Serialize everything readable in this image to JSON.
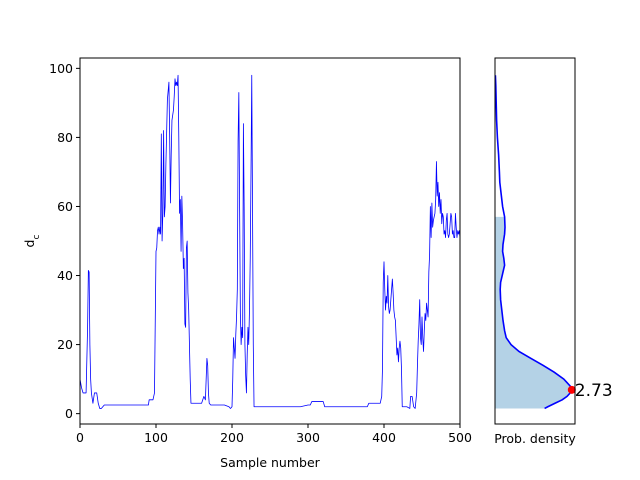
{
  "chart_data": [
    {
      "type": "line",
      "xlabel": "Sample number",
      "ylabel": "d_c",
      "xlim": [
        0,
        500
      ],
      "ylim": [
        -3,
        103
      ],
      "xticks": [
        0,
        100,
        200,
        300,
        400,
        500
      ],
      "yticks": [
        0,
        20,
        40,
        60,
        80,
        100
      ],
      "grid": false,
      "series": [
        {
          "color": "#0000ff",
          "points": [
            [
              0,
              10
            ],
            [
              2,
              7.5
            ],
            [
              4,
              6
            ],
            [
              8,
              6
            ],
            [
              10,
              25
            ],
            [
              11,
              41.5
            ],
            [
              12,
              41
            ],
            [
              13,
              20
            ],
            [
              14,
              10
            ],
            [
              15,
              6
            ],
            [
              17,
              3
            ],
            [
              19,
              6
            ],
            [
              22,
              6
            ],
            [
              24,
              3
            ],
            [
              26,
              1.5
            ],
            [
              28,
              1.5
            ],
            [
              30,
              2
            ],
            [
              32,
              2.5
            ],
            [
              60,
              2.5
            ],
            [
              90,
              2.5
            ],
            [
              91,
              4
            ],
            [
              96,
              4
            ],
            [
              98,
              6
            ],
            [
              100,
              47
            ],
            [
              101,
              48
            ],
            [
              102,
              53
            ],
            [
              103,
              54
            ],
            [
              104,
              52
            ],
            [
              105,
              54
            ],
            [
              106,
              52
            ],
            [
              107,
              81
            ],
            [
              108,
              50
            ],
            [
              109,
              58
            ],
            [
              110,
              82
            ],
            [
              111,
              57
            ],
            [
              112,
              60
            ],
            [
              113,
              72
            ],
            [
              115,
              91
            ],
            [
              117,
              96
            ],
            [
              118,
              80
            ],
            [
              119,
              61
            ],
            [
              120,
              75
            ],
            [
              121,
              85
            ],
            [
              123,
              88
            ],
            [
              124,
              92
            ],
            [
              125,
              97
            ],
            [
              126,
              95
            ],
            [
              127,
              96
            ],
            [
              128,
              95
            ],
            [
              129,
              98
            ],
            [
              130,
              80
            ],
            [
              131,
              58
            ],
            [
              132,
              62
            ],
            [
              133,
              47
            ],
            [
              134,
              63
            ],
            [
              135,
              55
            ],
            [
              136,
              42
            ],
            [
              137,
              45
            ],
            [
              138,
              26
            ],
            [
              139,
              25
            ],
            [
              140,
              48
            ],
            [
              141,
              50
            ],
            [
              142,
              35
            ],
            [
              143,
              30
            ],
            [
              144,
              20
            ],
            [
              145,
              10
            ],
            [
              146,
              3
            ],
            [
              150,
              3
            ],
            [
              155,
              3
            ],
            [
              160,
              3
            ],
            [
              163,
              5
            ],
            [
              165,
              4
            ],
            [
              167,
              16
            ],
            [
              168,
              14
            ],
            [
              169,
              6
            ],
            [
              170,
              3
            ],
            [
              172,
              2.5
            ],
            [
              174,
              2.5
            ],
            [
              180,
              2.5
            ],
            [
              190,
              2.5
            ],
            [
              196,
              2
            ],
            [
              198,
              1.5
            ],
            [
              200,
              2
            ],
            [
              201,
              10
            ],
            [
              202,
              22
            ],
            [
              203,
              19
            ],
            [
              204,
              16
            ],
            [
              205,
              23
            ],
            [
              206,
              28
            ],
            [
              207,
              36
            ],
            [
              208,
              79
            ],
            [
              209,
              93
            ],
            [
              210,
              60
            ],
            [
              211,
              29
            ],
            [
              212,
              20
            ],
            [
              213,
              25
            ],
            [
              214,
              22
            ],
            [
              215,
              84
            ],
            [
              216,
              60
            ],
            [
              217,
              20
            ],
            [
              218,
              11
            ],
            [
              219,
              6
            ],
            [
              220,
              17
            ],
            [
              221,
              25
            ],
            [
              222,
              20
            ],
            [
              223,
              30
            ],
            [
              224,
              45
            ],
            [
              225,
              70
            ],
            [
              226,
              98
            ],
            [
              227,
              60
            ],
            [
              228,
              20
            ],
            [
              229,
              2
            ],
            [
              235,
              2
            ],
            [
              260,
              2
            ],
            [
              290,
              2
            ],
            [
              300,
              2.5
            ],
            [
              303,
              2.5
            ],
            [
              305,
              3.5
            ],
            [
              320,
              3.5
            ],
            [
              322,
              2
            ],
            [
              340,
              2
            ],
            [
              370,
              2
            ],
            [
              378,
              2
            ],
            [
              380,
              3
            ],
            [
              395,
              3
            ],
            [
              397,
              5
            ],
            [
              398,
              13
            ],
            [
              399,
              38
            ],
            [
              400,
              44
            ],
            [
              401,
              36
            ],
            [
              402,
              30
            ],
            [
              403,
              34
            ],
            [
              404,
              32
            ],
            [
              405,
              40
            ],
            [
              406,
              31
            ],
            [
              407,
              29
            ],
            [
              408,
              30
            ],
            [
              409,
              33
            ],
            [
              410,
              36
            ],
            [
              411,
              39
            ],
            [
              412,
              35
            ],
            [
              413,
              30
            ],
            [
              414,
              28
            ],
            [
              415,
              27
            ],
            [
              416,
              22
            ],
            [
              417,
              17
            ],
            [
              418,
              19
            ],
            [
              419,
              15
            ],
            [
              420,
              19
            ],
            [
              421,
              21
            ],
            [
              422,
              19
            ],
            [
              423,
              13
            ],
            [
              424,
              2
            ],
            [
              430,
              2
            ],
            [
              434,
              1.5
            ],
            [
              435,
              5
            ],
            [
              437,
              5
            ],
            [
              439,
              2
            ],
            [
              441,
              1.5
            ],
            [
              443,
              6
            ],
            [
              444,
              14
            ],
            [
              445,
              21
            ],
            [
              446,
              26
            ],
            [
              447,
              33
            ],
            [
              448,
              22
            ],
            [
              449,
              20
            ],
            [
              450,
              28
            ],
            [
              451,
              22
            ],
            [
              452,
              18
            ],
            [
              453,
              24
            ],
            [
              454,
              29
            ],
            [
              455,
              27
            ],
            [
              456,
              32
            ],
            [
              457,
              30
            ],
            [
              458,
              28
            ],
            [
              459,
              41
            ],
            [
              460,
              46
            ],
            [
              461,
              60
            ],
            [
              462,
              51
            ],
            [
              463,
              61
            ],
            [
              464,
              54
            ],
            [
              465,
              56
            ],
            [
              466,
              57
            ],
            [
              467,
              58
            ],
            [
              468,
              62
            ],
            [
              469,
              73
            ],
            [
              470,
              63
            ],
            [
              471,
              67
            ],
            [
              472,
              60
            ],
            [
              473,
              64
            ],
            [
              474,
              58
            ],
            [
              475,
              62
            ],
            [
              476,
              55
            ],
            [
              477,
              58
            ],
            [
              478,
              57
            ],
            [
              479,
              52
            ],
            [
              480,
              53
            ],
            [
              481,
              51
            ],
            [
              482,
              56
            ],
            [
              483,
              58
            ],
            [
              484,
              52
            ],
            [
              485,
              51
            ],
            [
              486,
              52
            ],
            [
              487,
              55
            ],
            [
              488,
              58
            ],
            [
              489,
              57
            ],
            [
              490,
              52
            ],
            [
              491,
              53
            ],
            [
              492,
              51
            ],
            [
              493,
              51
            ],
            [
              494,
              58
            ],
            [
              495,
              54
            ],
            [
              496,
              51
            ],
            [
              497,
              53
            ],
            [
              498,
              52
            ],
            [
              499,
              53
            ],
            [
              500,
              51
            ]
          ]
        }
      ]
    },
    {
      "type": "area",
      "xlabel": "Prob. density",
      "ylim": [
        -3,
        103
      ],
      "density_max": 1,
      "fill_color": "#b4d2e6",
      "line_color": "#0000ff",
      "curve": [
        [
          1.5,
          0.62
        ],
        [
          2,
          0.66
        ],
        [
          3,
          0.75
        ],
        [
          4,
          0.84
        ],
        [
          5,
          0.9
        ],
        [
          6,
          0.94
        ],
        [
          6.9,
          0.96
        ],
        [
          8,
          0.94
        ],
        [
          10,
          0.86
        ],
        [
          12,
          0.74
        ],
        [
          14,
          0.6
        ],
        [
          16,
          0.45
        ],
        [
          18,
          0.3
        ],
        [
          20,
          0.2
        ],
        [
          22,
          0.14
        ],
        [
          24,
          0.12
        ],
        [
          27,
          0.1
        ],
        [
          30,
          0.085
        ],
        [
          33,
          0.07
        ],
        [
          36,
          0.065
        ],
        [
          38,
          0.07
        ],
        [
          41,
          0.1
        ],
        [
          43,
          0.12
        ],
        [
          45,
          0.11
        ],
        [
          47,
          0.095
        ],
        [
          49,
          0.1
        ],
        [
          52,
          0.12
        ],
        [
          54,
          0.125
        ],
        [
          57,
          0.12
        ],
        [
          60,
          0.095
        ],
        [
          63,
          0.08
        ],
        [
          67,
          0.06
        ],
        [
          70,
          0.055
        ],
        [
          75,
          0.045
        ],
        [
          80,
          0.03
        ],
        [
          85,
          0.02
        ],
        [
          90,
          0.015
        ],
        [
          95,
          0.01
        ],
        [
          98,
          0.005
        ]
      ],
      "fill_top": 59,
      "marker": {
        "y": 6.9,
        "color": "#ff0000",
        "label": "2.73"
      }
    }
  ]
}
